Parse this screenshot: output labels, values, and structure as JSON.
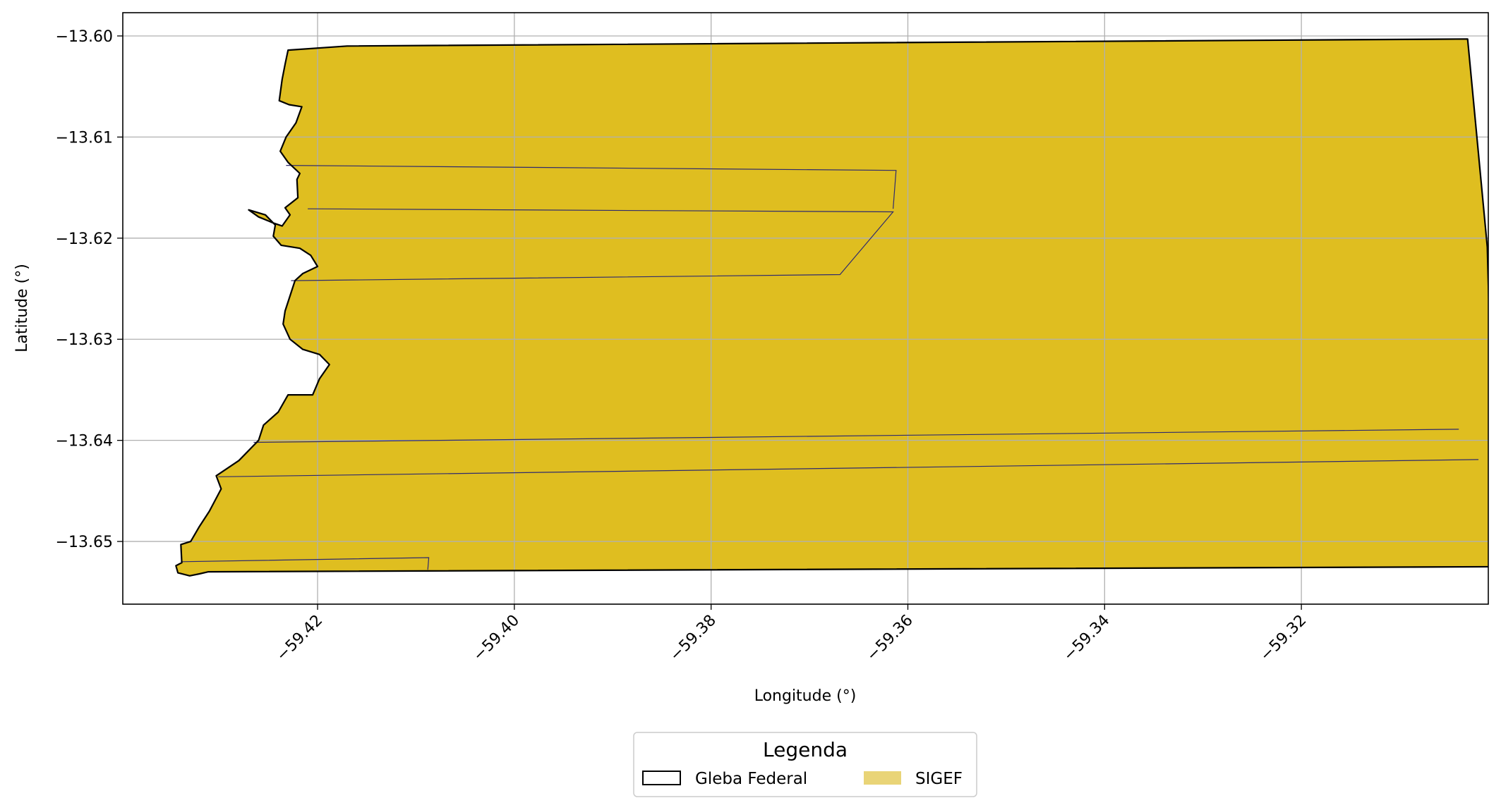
{
  "chart_data": {
    "type": "map",
    "title": "",
    "xlabel": "Longitude (°)",
    "ylabel": "Latitude (°)",
    "xlim": [
      -59.4398,
      -59.301
    ],
    "ylim": [
      -13.6562,
      -13.5977
    ],
    "grid": true,
    "xticks": [
      -59.42,
      -59.4,
      -59.38,
      -59.36,
      -59.34,
      -59.32
    ],
    "xtick_labels": [
      "−59.42",
      "−59.40",
      "−59.38",
      "−59.36",
      "−59.34",
      "−59.32"
    ],
    "yticks": [
      -13.6,
      -13.61,
      -13.62,
      -13.63,
      -13.64,
      -13.65
    ],
    "ytick_labels": [
      "−13.60",
      "−13.61",
      "−13.62",
      "−13.63",
      "−13.64",
      "−13.65"
    ],
    "colors": {
      "sigef_fill": "#dfbe20",
      "gleba_edge": "#000000",
      "parcel_edge": "#2e2a6e",
      "legend_sigef_patch": "#e9d477"
    },
    "layers": [
      {
        "name": "Gleba Federal",
        "style": "outline",
        "polygon": [
          [
            -59.417,
            -13.601
          ],
          [
            -59.3031,
            -13.6003
          ],
          [
            -59.3011,
            -13.6209
          ],
          [
            -59.3006,
            -13.6389
          ],
          [
            -59.3004,
            -13.6525
          ],
          [
            -59.4311,
            -13.653
          ],
          [
            -59.432,
            -13.6532
          ],
          [
            -59.433,
            -13.6534
          ],
          [
            -59.4342,
            -13.6531
          ],
          [
            -59.4344,
            -13.6524
          ],
          [
            -59.4338,
            -13.6521
          ],
          [
            -59.4339,
            -13.6503
          ],
          [
            -59.4329,
            -13.65
          ],
          [
            -59.432,
            -13.6485
          ],
          [
            -59.431,
            -13.647
          ],
          [
            -59.4298,
            -13.6448
          ],
          [
            -59.4303,
            -13.6435
          ],
          [
            -59.428,
            -13.642
          ],
          [
            -59.426,
            -13.64
          ],
          [
            -59.4255,
            -13.6385
          ],
          [
            -59.424,
            -13.6372
          ],
          [
            -59.423,
            -13.6355
          ],
          [
            -59.4205,
            -13.6355
          ],
          [
            -59.4198,
            -13.6339
          ],
          [
            -59.4188,
            -13.6325
          ],
          [
            -59.4198,
            -13.6315
          ],
          [
            -59.4215,
            -13.631
          ],
          [
            -59.4228,
            -13.63
          ],
          [
            -59.4235,
            -13.6285
          ],
          [
            -59.4233,
            -13.6272
          ],
          [
            -59.4223,
            -13.6242
          ],
          [
            -59.4215,
            -13.6235
          ],
          [
            -59.42,
            -13.6228
          ],
          [
            -59.4207,
            -13.6217
          ],
          [
            -59.4218,
            -13.621
          ],
          [
            -59.4237,
            -13.6207
          ],
          [
            -59.4245,
            -13.6198
          ],
          [
            -59.4243,
            -13.6187
          ],
          [
            -59.4253,
            -13.6177
          ],
          [
            -59.427,
            -13.6172
          ],
          [
            -59.426,
            -13.6179
          ],
          [
            -59.4245,
            -13.6185
          ],
          [
            -59.4236,
            -13.6188
          ],
          [
            -59.4228,
            -13.6177
          ],
          [
            -59.4233,
            -13.617
          ],
          [
            -59.422,
            -13.616
          ],
          [
            -59.4221,
            -13.6142
          ],
          [
            -59.4218,
            -13.6136
          ],
          [
            -59.423,
            -13.6125
          ],
          [
            -59.4238,
            -13.6114
          ],
          [
            -59.4232,
            -13.61
          ],
          [
            -59.4222,
            -13.6086
          ],
          [
            -59.4216,
            -13.607
          ],
          [
            -59.4229,
            -13.6068
          ],
          [
            -59.4239,
            -13.6064
          ],
          [
            -59.4236,
            -13.6043
          ],
          [
            -59.4233,
            -13.6028
          ],
          [
            -59.423,
            -13.6014
          ],
          [
            -59.417,
            -13.601
          ]
        ]
      },
      {
        "name": "SIGEF",
        "style": "filled",
        "parcel_boundaries": [
          [
            [
              -59.4232,
              -13.6128
            ],
            [
              -59.3612,
              -13.6133
            ],
            [
              -59.3615,
              -13.6171
            ]
          ],
          [
            [
              -59.421,
              -13.6171
            ],
            [
              -59.3615,
              -13.6174
            ],
            [
              -59.3669,
              -13.6236
            ],
            [
              -59.4227,
              -13.6242
            ]
          ],
          [
            [
              -59.4265,
              -13.6402
            ],
            [
              -59.304,
              -13.6389
            ]
          ],
          [
            [
              -59.4301,
              -13.6436
            ],
            [
              -59.302,
              -13.6419
            ]
          ],
          [
            [
              -59.4339,
              -13.652
            ],
            [
              -59.4087,
              -13.6516
            ],
            [
              -59.4088,
              -13.6528
            ]
          ]
        ]
      }
    ],
    "legend": {
      "title": "Legenda",
      "placement": "bottom-center",
      "entries": [
        {
          "label": "Gleba Federal",
          "swatch": "outline"
        },
        {
          "label": "SIGEF",
          "swatch": "filled"
        }
      ]
    }
  }
}
